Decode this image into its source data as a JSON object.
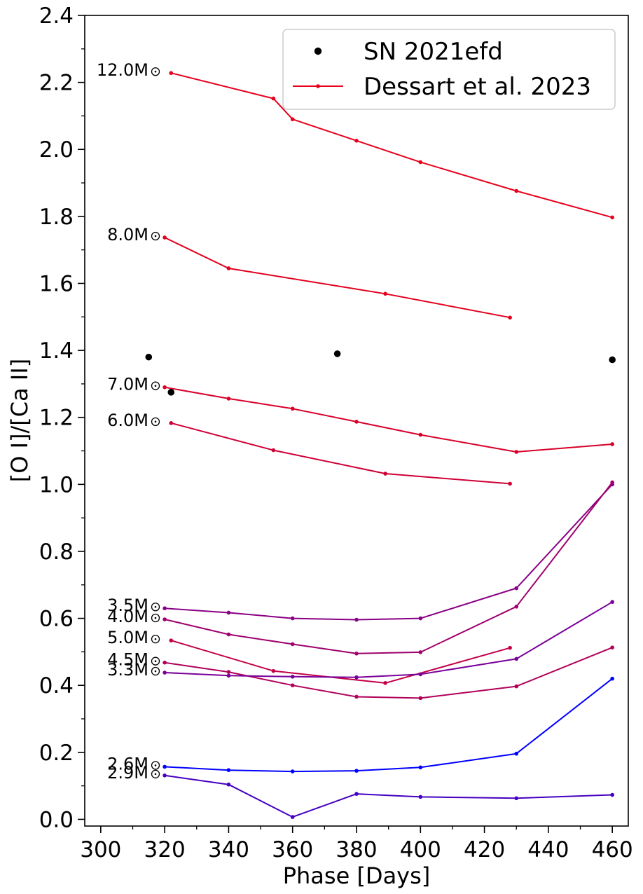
{
  "chart_data": {
    "type": "line",
    "xlabel": "Phase [Days]",
    "ylabel": "[O I]/[Ca II]",
    "xlim": [
      295,
      465
    ],
    "ylim": [
      -0.02,
      2.4
    ],
    "x_ticks": [
      "300",
      "320",
      "340",
      "360",
      "380",
      "400",
      "420",
      "440",
      "460"
    ],
    "y_ticks": [
      "0.0",
      "0.2",
      "0.4",
      "0.6",
      "0.8",
      "1.0",
      "1.2",
      "1.4",
      "1.6",
      "1.8",
      "2.0",
      "2.2",
      "2.4"
    ],
    "legend_position": "top-right",
    "legend": [
      {
        "label": "SN 2021efd",
        "style": "marker",
        "color": "#000000"
      },
      {
        "label": "Dessart et al. 2023",
        "style": "line-marker",
        "color": "#e8001c"
      }
    ],
    "observations": {
      "name": "SN 2021efd",
      "color": "#000000",
      "points": [
        {
          "x": 315,
          "y": 1.38
        },
        {
          "x": 322,
          "y": 1.275
        },
        {
          "x": 374,
          "y": 1.39
        },
        {
          "x": 460,
          "y": 1.372
        }
      ]
    },
    "series": [
      {
        "label": "12.0M",
        "color": "#e8001c",
        "x": [
          322,
          354,
          360,
          380,
          400,
          430,
          460
        ],
        "y": [
          2.228,
          2.152,
          2.09,
          2.026,
          1.962,
          1.876,
          1.797
        ]
      },
      {
        "label": "8.0M",
        "color": "#e2001e",
        "x": [
          320,
          340,
          389,
          428
        ],
        "y": [
          1.737,
          1.645,
          1.569,
          1.498
        ]
      },
      {
        "label": "7.0M",
        "color": "#d80029",
        "x": [
          320,
          340,
          360,
          380,
          400,
          430,
          460
        ],
        "y": [
          1.29,
          1.256,
          1.226,
          1.187,
          1.148,
          1.097,
          1.12
        ]
      },
      {
        "label": "6.0M",
        "color": "#cf0036",
        "x": [
          322,
          354,
          389,
          428
        ],
        "y": [
          1.183,
          1.102,
          1.032,
          1.002
        ]
      },
      {
        "label": "3.5M",
        "color": "#8a0084",
        "x": [
          320,
          340,
          360,
          380,
          400,
          430,
          460
        ],
        "y": [
          0.63,
          0.617,
          0.6,
          0.596,
          0.6,
          0.69,
          1.0
        ]
      },
      {
        "label": "4.0M",
        "color": "#9f006d",
        "x": [
          320,
          340,
          360,
          380,
          400,
          430,
          460
        ],
        "y": [
          0.597,
          0.552,
          0.523,
          0.495,
          0.499,
          0.635,
          1.006
        ]
      },
      {
        "label": "5.0M",
        "color": "#c30048",
        "x": [
          322,
          354,
          389,
          428
        ],
        "y": [
          0.534,
          0.443,
          0.407,
          0.512
        ]
      },
      {
        "label": "4.5M",
        "color": "#b1005a",
        "x": [
          320,
          340,
          360,
          380,
          400,
          430,
          460
        ],
        "y": [
          0.468,
          0.44,
          0.4,
          0.366,
          0.362,
          0.397,
          0.513
        ]
      },
      {
        "label": "3.3M",
        "color": "#7a009a",
        "x": [
          320,
          340,
          360,
          380,
          400,
          430,
          460
        ],
        "y": [
          0.438,
          0.429,
          0.426,
          0.424,
          0.433,
          0.479,
          0.649
        ]
      },
      {
        "label": "2.6M",
        "color": "#0000ff",
        "x": [
          320,
          340,
          360,
          380,
          400,
          430,
          460
        ],
        "y": [
          0.157,
          0.147,
          0.143,
          0.145,
          0.155,
          0.196,
          0.42
        ]
      },
      {
        "label": "2.9M",
        "color": "#4500c0",
        "x": [
          320,
          340,
          360,
          380,
          400,
          430,
          460
        ],
        "y": [
          0.131,
          0.104,
          0.007,
          0.076,
          0.067,
          0.063,
          0.073
        ]
      }
    ]
  }
}
